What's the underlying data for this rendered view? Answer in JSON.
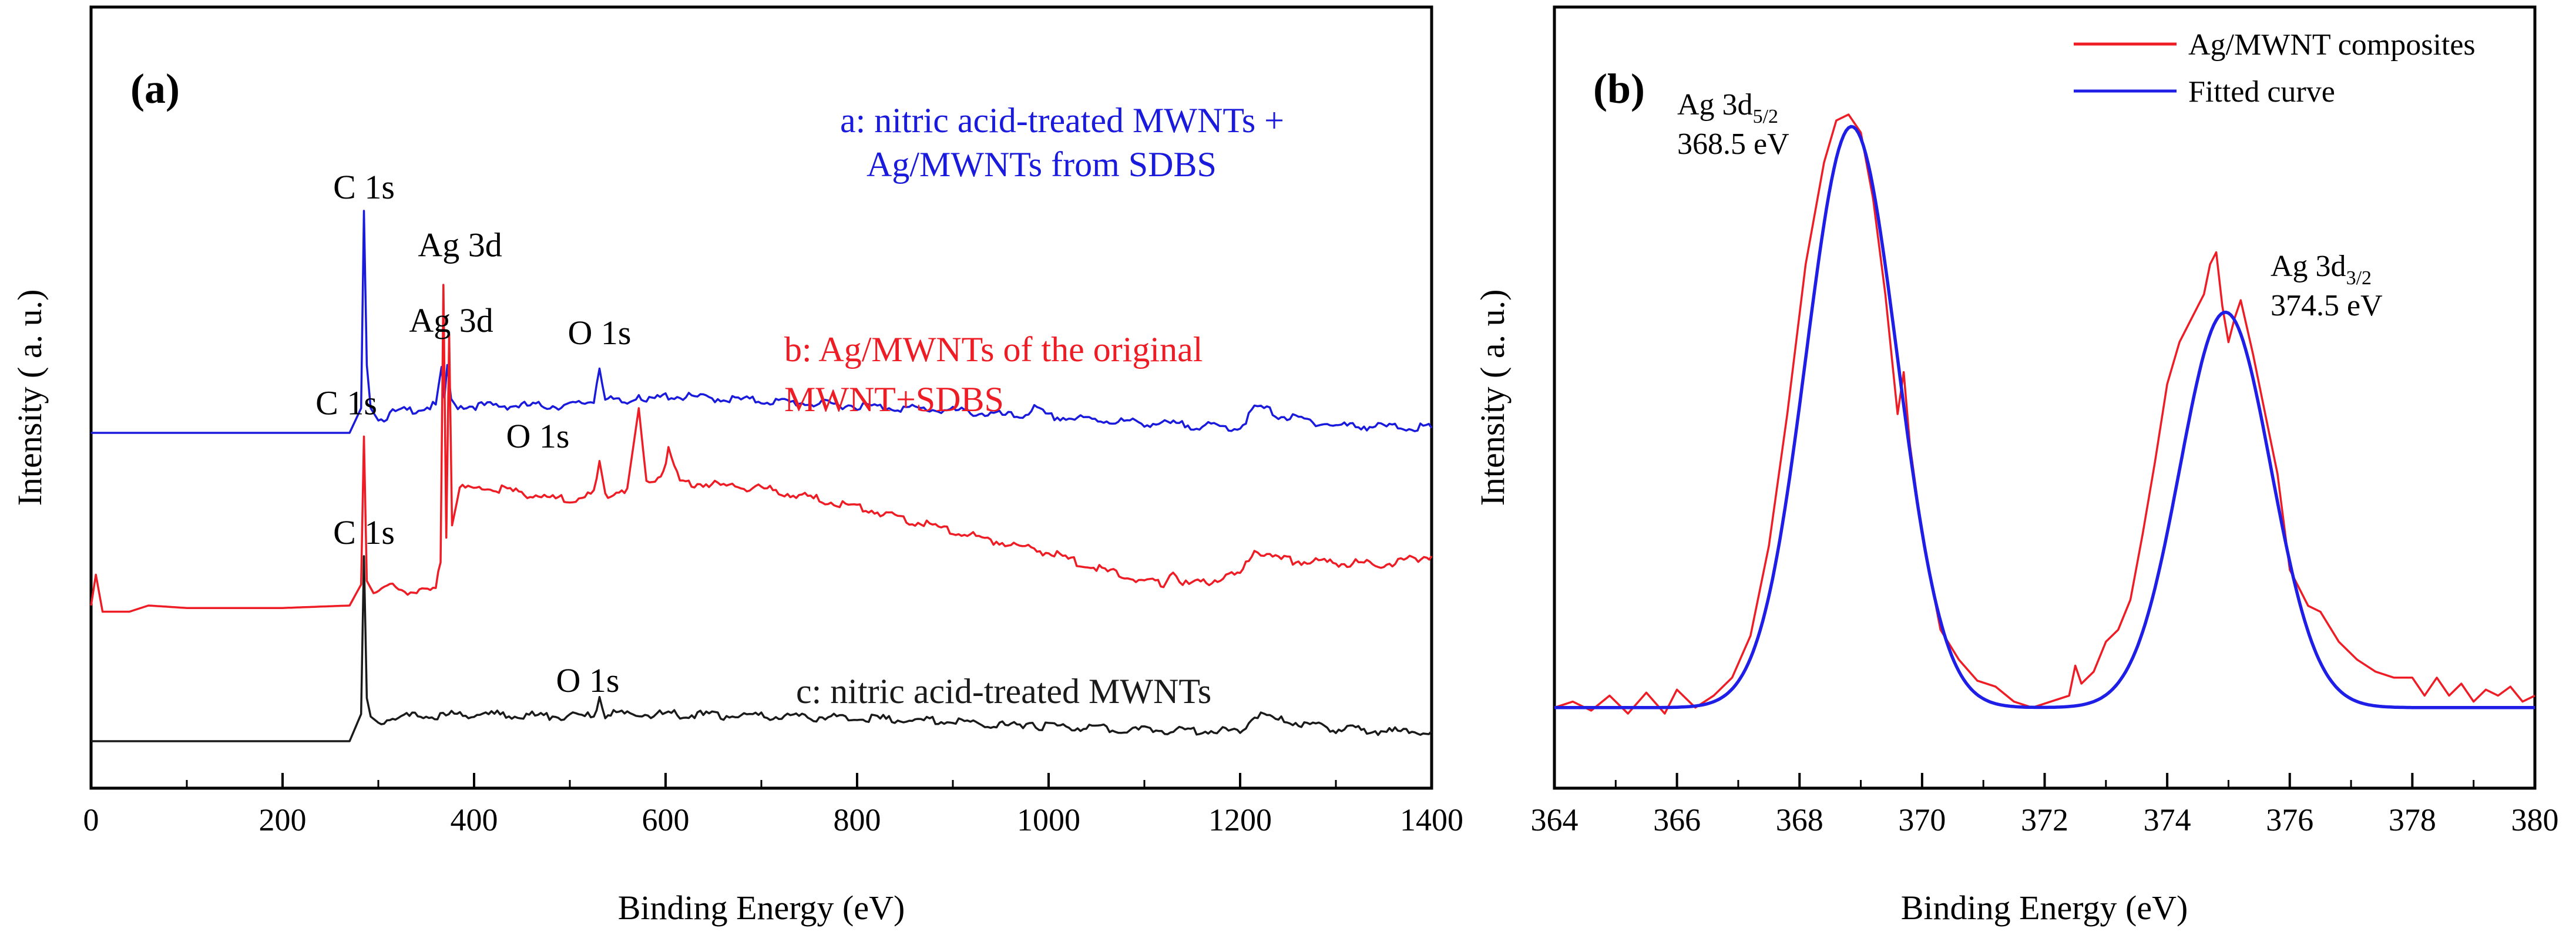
{
  "chart_data": [
    {
      "panel": "(a)",
      "type": "line",
      "xlabel": "Binding Energy (eV)",
      "ylabel": "Intensity ( a. u.)",
      "xlim": [
        0,
        1400
      ],
      "x_ticks": [
        0,
        200,
        400,
        600,
        800,
        1000,
        1200,
        1400
      ],
      "y_ticks": [],
      "series": [
        {
          "name": "a: nitric acid-treated MWNTs +",
          "name_line2": "Ag/MWNTs from SDBS",
          "color": "#1a1adc",
          "offset": 2.5,
          "x": [
            0,
            270,
            282,
            285,
            288,
            292,
            300,
            315,
            360,
            366,
            369,
            372,
            376,
            380,
            420,
            500,
            525,
            531,
            537,
            560,
            572,
            580,
            600,
            700,
            800,
            900,
            970,
            985,
            1000,
            1100,
            1200,
            1215,
            1225,
            1240,
            1300,
            1350,
            1400
          ],
          "y": [
            0,
            0.0,
            0.2,
            1.8,
            0.55,
            0.2,
            0.1,
            0.16,
            0.22,
            0.5,
            0.28,
            0.55,
            0.25,
            0.22,
            0.22,
            0.22,
            0.26,
            0.55,
            0.27,
            0.24,
            0.32,
            0.25,
            0.3,
            0.26,
            0.22,
            0.18,
            0.13,
            0.2,
            0.13,
            0.08,
            0.04,
            0.2,
            0.2,
            0.14,
            0.06,
            0.05,
            0.04
          ]
        },
        {
          "name": "b: Ag/MWNTs of the original",
          "name_line2": "MWNT+SDBS",
          "color": "#ee1c24",
          "offset": 1.05,
          "x": [
            0,
            5,
            12,
            40,
            60,
            100,
            200,
            270,
            282,
            285,
            288,
            295,
            315,
            340,
            360,
            365,
            368,
            371,
            374,
            377,
            385,
            420,
            500,
            525,
            531,
            537,
            560,
            572,
            580,
            595,
            603,
            615,
            700,
            800,
            900,
            1000,
            1050,
            1100,
            1120,
            1130,
            1140,
            1150,
            1200,
            1215,
            1225,
            1240,
            1300,
            1350,
            1395,
            1400
          ],
          "y": [
            0.05,
            0.3,
            0.0,
            0.0,
            0.05,
            0.03,
            0.03,
            0.05,
            0.22,
            1.42,
            0.25,
            0.15,
            0.2,
            0.15,
            0.18,
            0.4,
            2.65,
            0.6,
            2.25,
            0.7,
            1.0,
            1.0,
            0.9,
            0.95,
            1.2,
            0.95,
            1.0,
            1.65,
            1.05,
            1.1,
            1.3,
            1.05,
            1.0,
            0.85,
            0.65,
            0.48,
            0.35,
            0.25,
            0.22,
            0.35,
            0.22,
            0.22,
            0.3,
            0.5,
            0.48,
            0.42,
            0.4,
            0.38,
            0.45,
            0.45
          ]
        },
        {
          "name": "c: nitric acid-treated MWNTs",
          "name_line2": "",
          "color": "#1a1a1a",
          "offset": 0.0,
          "x": [
            0,
            270,
            282,
            285,
            288,
            292,
            300,
            315,
            350,
            400,
            500,
            525,
            531,
            537,
            560,
            600,
            700,
            800,
            900,
            970,
            980,
            990,
            1000,
            1100,
            1200,
            1215,
            1225,
            1240,
            1300,
            1350,
            1400
          ],
          "y": [
            0,
            0.0,
            0.22,
            1.5,
            0.35,
            0.2,
            0.15,
            0.2,
            0.2,
            0.22,
            0.2,
            0.2,
            0.36,
            0.22,
            0.22,
            0.22,
            0.2,
            0.19,
            0.16,
            0.12,
            0.18,
            0.12,
            0.12,
            0.09,
            0.08,
            0.22,
            0.22,
            0.17,
            0.1,
            0.08,
            0.08
          ]
        }
      ],
      "annotations": [
        {
          "id": "a_c1s",
          "text": "C 1s",
          "x": 285,
          "series": 0
        },
        {
          "id": "a_ag3d",
          "text": "Ag 3d",
          "x": 370,
          "series": 0
        },
        {
          "id": "a_o1s",
          "text": "O 1s",
          "x": 531,
          "series": 0
        },
        {
          "id": "b_ag3d",
          "text": "Ag 3d",
          "x": 370,
          "series": 1
        },
        {
          "id": "b_c1s",
          "text": "C 1s",
          "x": 285,
          "series": 1
        },
        {
          "id": "b_o1s",
          "text": "O 1s",
          "x": 531,
          "series": 1
        },
        {
          "id": "c_c1s",
          "text": "C 1s",
          "x": 285,
          "series": 2
        },
        {
          "id": "c_o1s",
          "text": "O 1s",
          "x": 531,
          "series": 2
        }
      ]
    },
    {
      "panel": "(b)",
      "type": "line",
      "xlabel": "Binding Energy (eV)",
      "ylabel": "Intensity ( a. u.)",
      "xlim": [
        364,
        380
      ],
      "ylim": [
        0,
        1
      ],
      "x_ticks": [
        364,
        366,
        368,
        370,
        372,
        374,
        376,
        378,
        380
      ],
      "legend_position": "top-right",
      "series": [
        {
          "name": "Ag/MWNT composites",
          "color": "#ee1c24",
          "x": [
            364.0,
            364.3,
            364.6,
            364.9,
            365.2,
            365.5,
            365.8,
            366.0,
            366.3,
            366.6,
            366.9,
            367.2,
            367.5,
            367.8,
            368.1,
            368.4,
            368.6,
            368.8,
            369.0,
            369.2,
            369.4,
            369.6,
            369.7,
            369.8,
            370.0,
            370.3,
            370.6,
            370.9,
            371.2,
            371.5,
            371.8,
            372.1,
            372.4,
            372.5,
            372.6,
            372.8,
            373.0,
            373.2,
            373.4,
            373.6,
            373.8,
            374.0,
            374.2,
            374.4,
            374.6,
            374.7,
            374.8,
            374.9,
            375.0,
            375.1,
            375.2,
            375.4,
            375.6,
            375.8,
            376.0,
            376.3,
            376.5,
            376.8,
            377.1,
            377.4,
            377.7,
            378.0,
            378.2,
            378.4,
            378.6,
            378.8,
            379.0,
            379.2,
            379.4,
            379.6,
            379.8,
            380.0
          ],
          "y": [
            0.01,
            0.02,
            0.005,
            0.03,
            0.0,
            0.035,
            0.0,
            0.04,
            0.01,
            0.03,
            0.06,
            0.13,
            0.28,
            0.5,
            0.75,
            0.92,
            0.99,
            1.0,
            0.97,
            0.86,
            0.7,
            0.5,
            0.57,
            0.45,
            0.3,
            0.14,
            0.09,
            0.055,
            0.045,
            0.02,
            0.01,
            0.02,
            0.03,
            0.08,
            0.05,
            0.07,
            0.12,
            0.14,
            0.19,
            0.3,
            0.42,
            0.55,
            0.62,
            0.66,
            0.7,
            0.75,
            0.77,
            0.68,
            0.62,
            0.66,
            0.69,
            0.6,
            0.5,
            0.4,
            0.24,
            0.18,
            0.17,
            0.12,
            0.09,
            0.07,
            0.06,
            0.06,
            0.03,
            0.06,
            0.03,
            0.05,
            0.02,
            0.04,
            0.03,
            0.045,
            0.02,
            0.03
          ]
        },
        {
          "name": "Fitted curve",
          "color": "#1e1ee6",
          "type": "gaussian_sum",
          "baseline": 0.01,
          "peaks": [
            {
              "center": 368.85,
              "height": 0.97,
              "fwhm": 1.75
            },
            {
              "center": 374.95,
              "height": 0.66,
              "fwhm": 1.75
            }
          ]
        }
      ],
      "annotations": [
        {
          "id": "p1",
          "line1": "Ag 3d",
          "sub": "5/2",
          "line2": "368.5 eV"
        },
        {
          "id": "p2",
          "line1": "Ag 3d",
          "sub": "3/2",
          "line2": "374.5 eV"
        }
      ]
    }
  ]
}
